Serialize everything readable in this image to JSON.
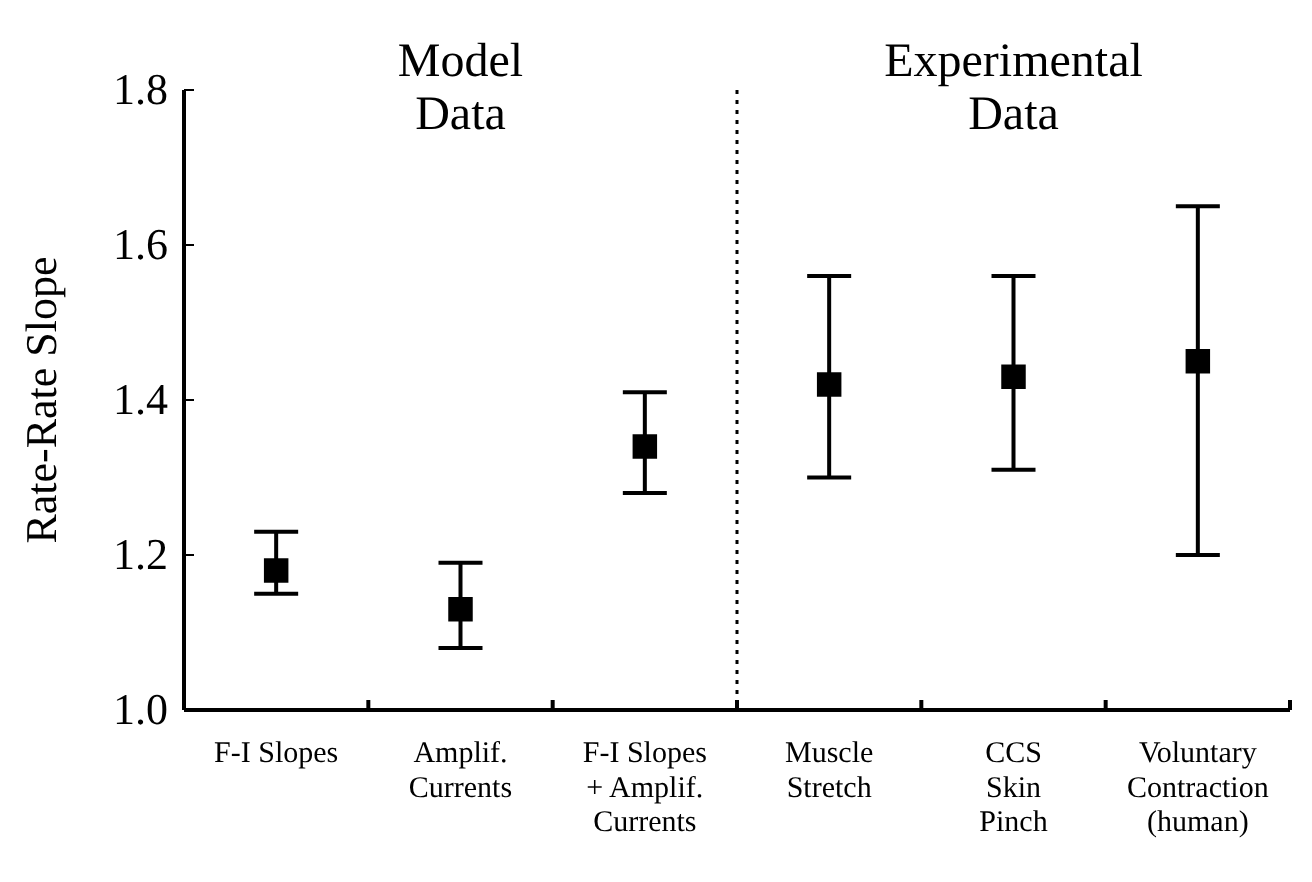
{
  "chart_data": {
    "type": "scatter",
    "ylabel": "Rate-Rate Slope",
    "categories": [
      "F-I Slopes",
      "Amplif.\nCurrents",
      "F-I Slopes\n+ Amplif.\nCurrents",
      "Muscle\nStretch",
      "CCS\nSkin\nPinch",
      "Voluntary\nContraction\n(human)"
    ],
    "values": [
      1.18,
      1.13,
      1.34,
      1.42,
      1.43,
      1.45
    ],
    "errors": [
      [
        1.15,
        1.23
      ],
      [
        1.08,
        1.19
      ],
      [
        1.28,
        1.41
      ],
      [
        1.3,
        1.56
      ],
      [
        1.31,
        1.56
      ],
      [
        1.2,
        1.65
      ]
    ],
    "color": "#000000",
    "marker": "square",
    "ylim": [
      1,
      1.8
    ],
    "yticks": [
      {
        "value": 1,
        "label": "1.0"
      },
      {
        "value": 1.2,
        "label": "1.2"
      },
      {
        "value": 1.4,
        "label": "1.4"
      },
      {
        "value": 1.6,
        "label": "1.6"
      },
      {
        "value": 1.8,
        "label": "1.8"
      }
    ],
    "annotations": [
      "Model\nData",
      "Experimental\nData"
    ],
    "grid": false
  }
}
